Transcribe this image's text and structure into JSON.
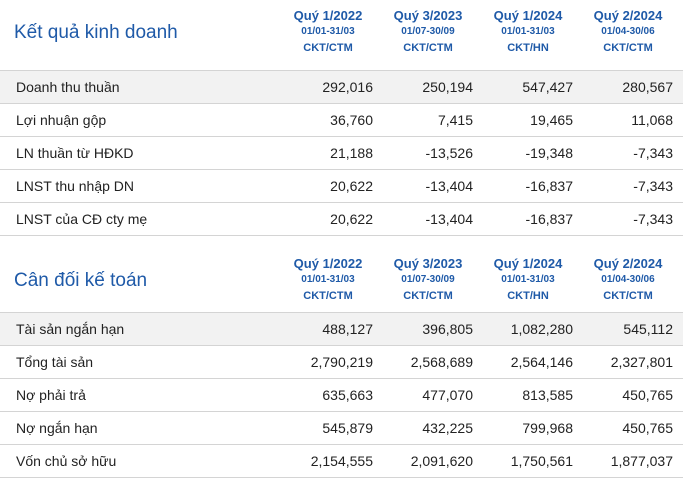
{
  "income": {
    "title": "Kết quả kinh doanh",
    "columns": [
      {
        "quarter": "Quý 1/2022",
        "dates": "01/01-31/03",
        "type": "CKT/CTM"
      },
      {
        "quarter": "Quý 3/2023",
        "dates": "01/07-30/09",
        "type": "CKT/CTM"
      },
      {
        "quarter": "Quý 1/2024",
        "dates": "01/01-31/03",
        "type": "CKT/HN"
      },
      {
        "quarter": "Quý 2/2024",
        "dates": "01/04-30/06",
        "type": "CKT/CTM"
      }
    ],
    "rows": [
      {
        "label": "Doanh thu thuần",
        "values": [
          "292,016",
          "250,194",
          "547,427",
          "280,567"
        ]
      },
      {
        "label": "Lợi nhuận gộp",
        "values": [
          "36,760",
          "7,415",
          "19,465",
          "11,068"
        ]
      },
      {
        "label": "LN thuần từ HĐKD",
        "values": [
          "21,188",
          "-13,526",
          "-19,348",
          "-7,343"
        ]
      },
      {
        "label": "LNST thu nhập DN",
        "values": [
          "20,622",
          "-13,404",
          "-16,837",
          "-7,343"
        ]
      },
      {
        "label": "LNST của CĐ cty mẹ",
        "values": [
          "20,622",
          "-13,404",
          "-16,837",
          "-7,343"
        ]
      }
    ]
  },
  "balance": {
    "title": "Cân đối kế toán",
    "columns": [
      {
        "quarter": "Quý 1/2022",
        "dates": "01/01-31/03",
        "type": "CKT/CTM"
      },
      {
        "quarter": "Quý 3/2023",
        "dates": "01/07-30/09",
        "type": "CKT/CTM"
      },
      {
        "quarter": "Quý 1/2024",
        "dates": "01/01-31/03",
        "type": "CKT/HN"
      },
      {
        "quarter": "Quý 2/2024",
        "dates": "01/04-30/06",
        "type": "CKT/CTM"
      }
    ],
    "rows": [
      {
        "label": "Tài sản ngắn hạn",
        "values": [
          "488,127",
          "396,805",
          "1,082,280",
          "545,112"
        ]
      },
      {
        "label": "Tổng tài sản",
        "values": [
          "2,790,219",
          "2,568,689",
          "2,564,146",
          "2,327,801"
        ]
      },
      {
        "label": "Nợ phải trả",
        "values": [
          "635,663",
          "477,070",
          "813,585",
          "450,765"
        ]
      },
      {
        "label": "Nợ ngắn hạn",
        "values": [
          "545,879",
          "432,225",
          "799,968",
          "450,765"
        ]
      },
      {
        "label": "Vốn chủ sở hữu",
        "values": [
          "2,154,555",
          "2,091,620",
          "1,750,561",
          "1,877,037"
        ]
      }
    ]
  }
}
